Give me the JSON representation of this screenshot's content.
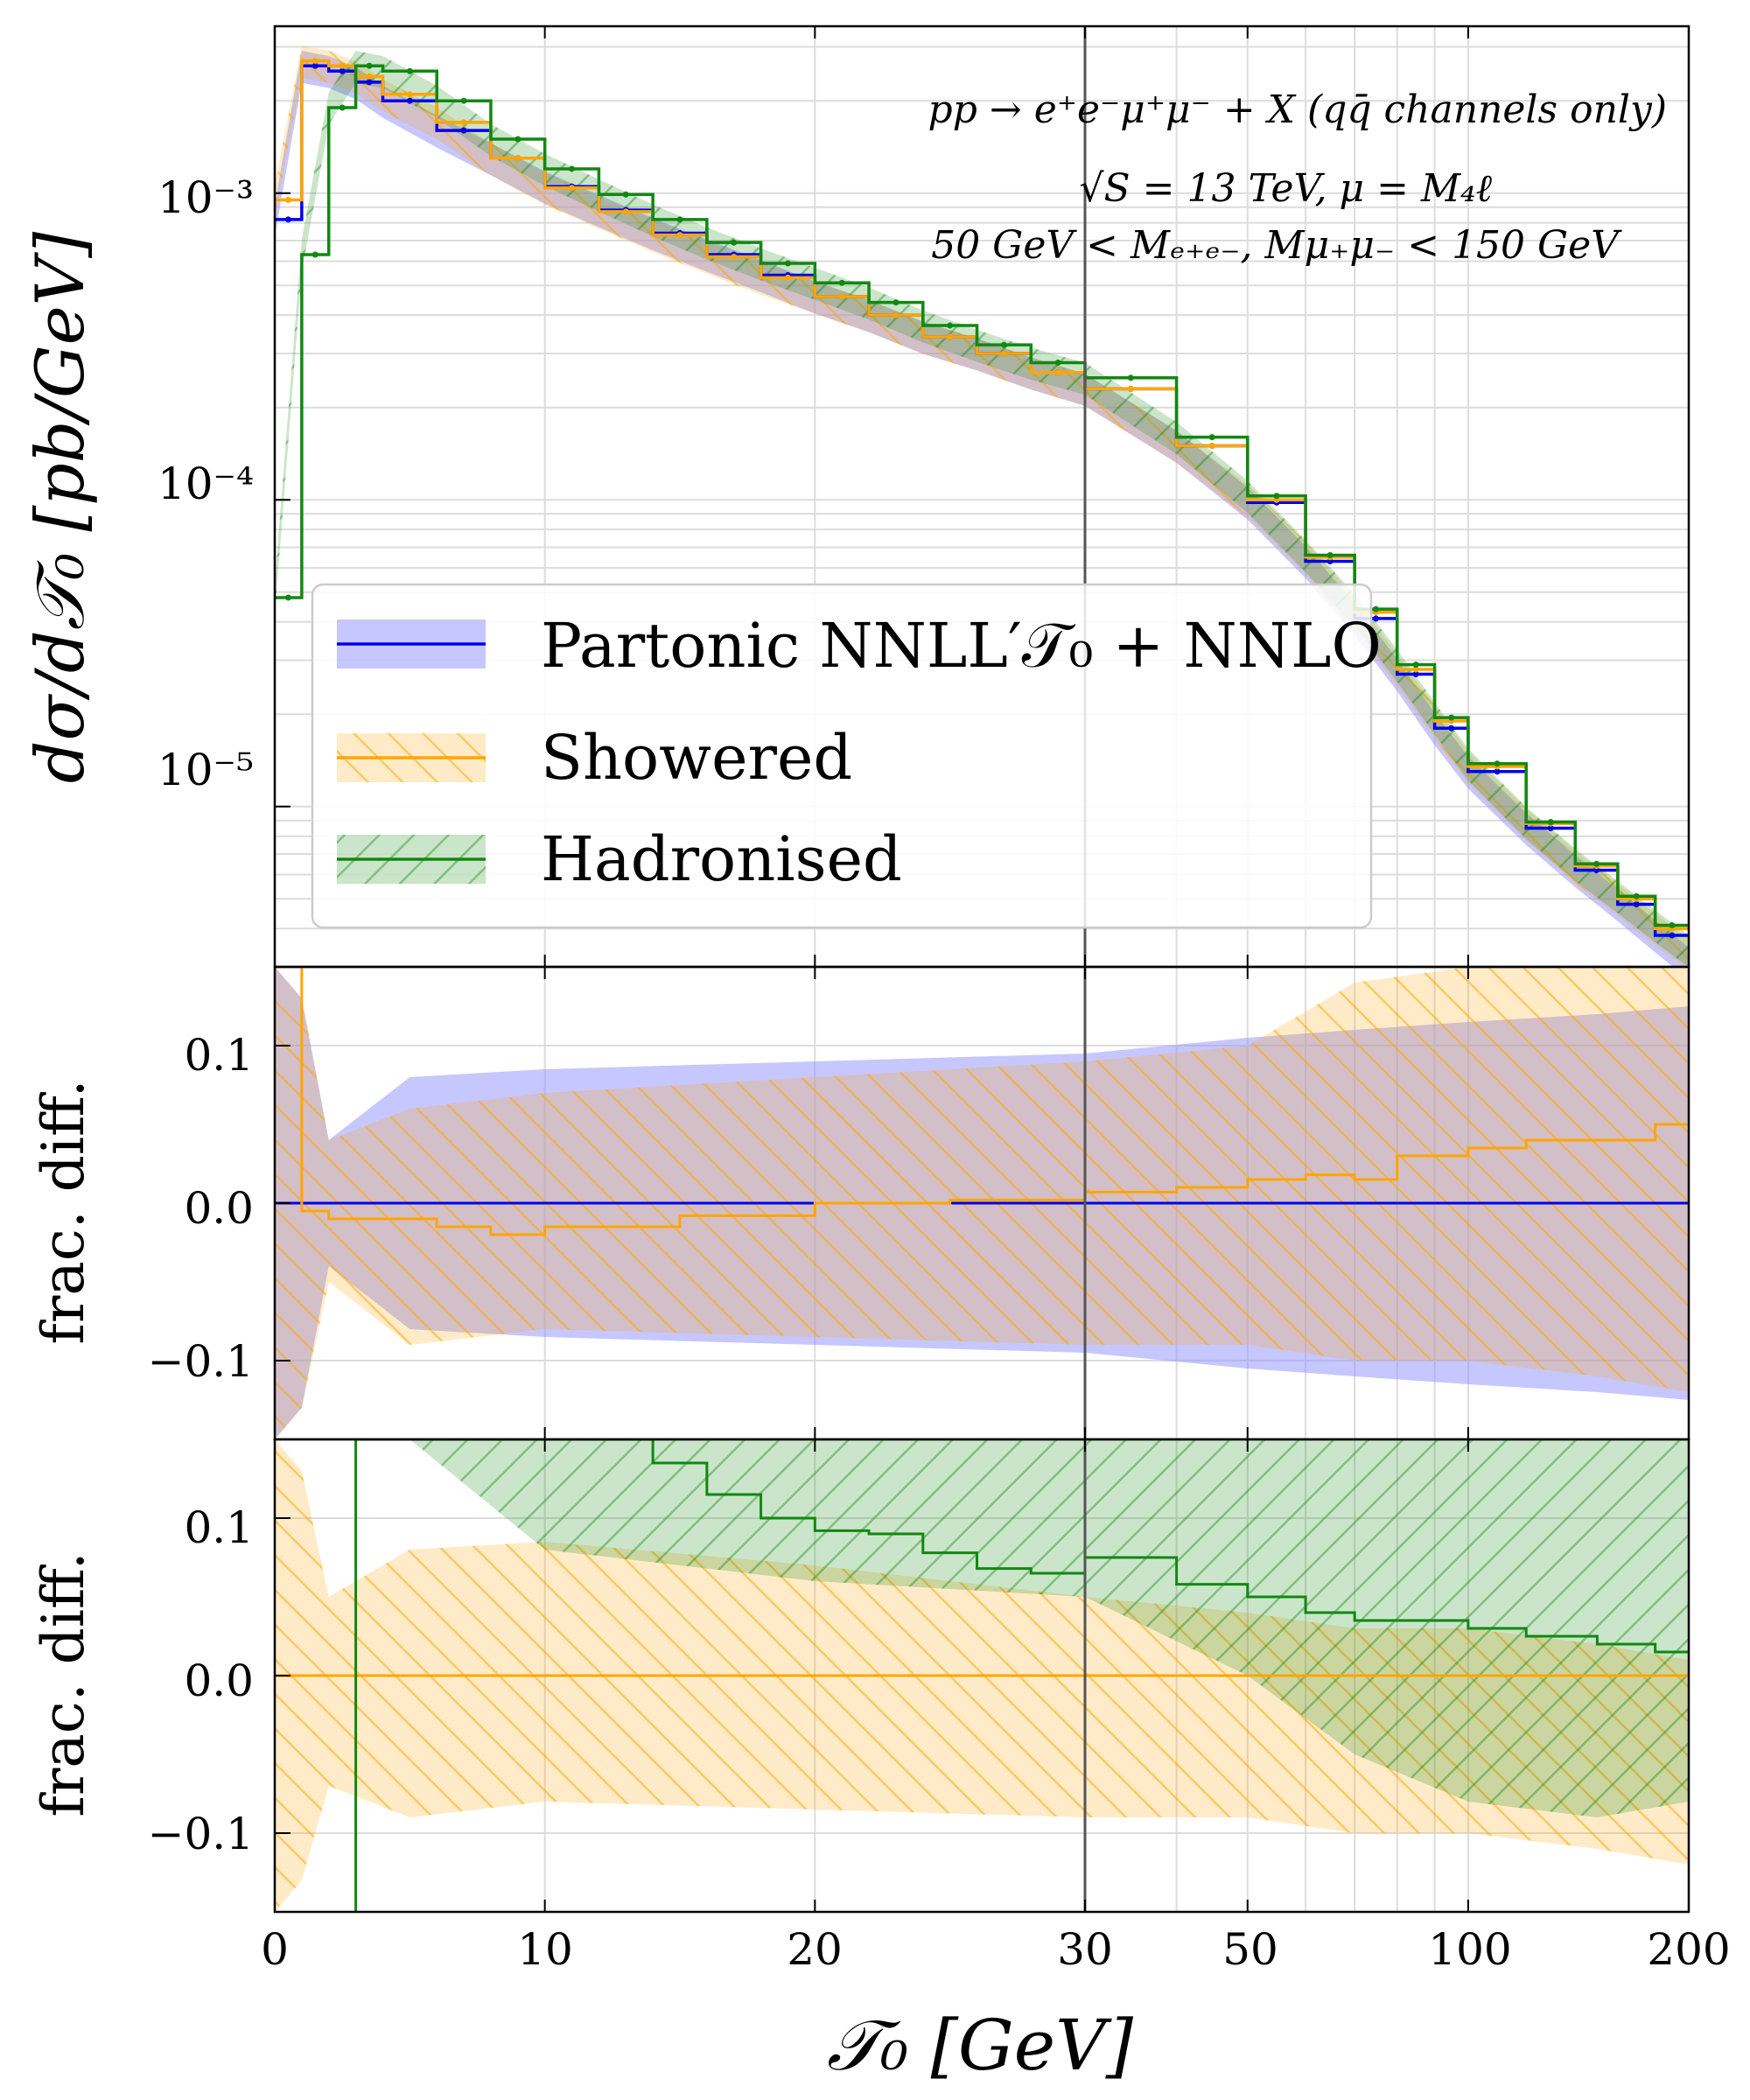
{
  "colors": {
    "partonic": "#0000ee",
    "partonic_band": "#9999ff",
    "showered": "#ffa500",
    "showered_band": "#ffd080",
    "hadronised": "#118811",
    "hadronised_band": "#88cc88",
    "grid": "#dcdcdc",
    "divider": "#555555"
  },
  "annotation": {
    "line1": "pp → e⁺e⁻μ⁺μ⁻ + X (qq̄ channels only)",
    "line2": "√S = 13 TeV, μ = M₄ℓ",
    "line3": "50 GeV < Mₑ₊ₑ₋, Mμ₊μ₋ < 150 GeV"
  },
  "legend": {
    "partonic": "Partonic NNLL′𝒯₀ + NNLO",
    "showered": "Showered",
    "hadronised": "Hadronised"
  },
  "chart_data": [
    {
      "id": "top",
      "type": "line",
      "title": "",
      "ylabel": "dσ/d𝒯₀ [pb/GeV]",
      "yscale": "log",
      "ylim": [
        3e-06,
        0.0035
      ],
      "yticks": [
        "10⁻³",
        "10⁻⁴",
        "10⁻⁵"
      ],
      "x_axis": "piecewise linear: 0–30 and 30–200 joined at the vertical line",
      "series": [
        {
          "name": "Partonic NNLL′𝒯₀ + NNLO",
          "color_key": "partonic",
          "x": [
            0,
            1,
            2,
            3,
            4,
            6,
            8,
            10,
            12,
            14,
            16,
            18,
            20,
            22,
            24,
            26,
            28,
            30,
            40,
            50,
            60,
            70,
            80,
            90,
            100,
            120,
            140,
            160,
            180,
            200
          ],
          "y": [
            0.00082,
            0.0026,
            0.0025,
            0.0023,
            0.002,
            0.0016,
            0.0013,
            0.00105,
            0.00088,
            0.00074,
            0.00063,
            0.00054,
            0.00046,
            0.0004,
            0.00034,
            0.0003,
            0.00026,
            0.00023,
            0.00015,
            9.8e-05,
            6.3e-05,
            4.1e-05,
            2.7e-05,
            1.8e-05,
            1.3e-05,
            8.5e-06,
            6.2e-06,
            4.8e-06,
            3.8e-06,
            3.1e-06
          ]
        },
        {
          "name": "Showered",
          "color_key": "showered",
          "x": [
            0,
            1,
            2,
            3,
            4,
            6,
            8,
            10,
            12,
            14,
            16,
            18,
            20,
            22,
            24,
            26,
            28,
            30,
            40,
            50,
            60,
            70,
            80,
            90,
            100,
            120,
            140,
            160,
            180,
            200
          ],
          "y": [
            0.00095,
            0.0027,
            0.0026,
            0.0024,
            0.0021,
            0.0017,
            0.0013,
            0.00104,
            0.00087,
            0.00073,
            0.00062,
            0.00053,
            0.00046,
            0.0004,
            0.00034,
            0.0003,
            0.00026,
            0.00023,
            0.00015,
            0.0001,
            6.5e-05,
            4.3e-05,
            2.8e-05,
            1.9e-05,
            1.35e-05,
            8.8e-06,
            6.4e-06,
            5e-06,
            4e-06,
            3.3e-06
          ]
        },
        {
          "name": "Hadronised",
          "color_key": "hadronised",
          "x": [
            0,
            1,
            2,
            3,
            4,
            6,
            8,
            10,
            12,
            14,
            16,
            18,
            20,
            22,
            24,
            26,
            28,
            30,
            40,
            50,
            60,
            70,
            80,
            90,
            100,
            120,
            140,
            160,
            180,
            200
          ],
          "y": [
            4.8e-05,
            0.00063,
            0.0019,
            0.0026,
            0.0025,
            0.002,
            0.0015,
            0.0012,
            0.00099,
            0.00082,
            0.00069,
            0.00059,
            0.00051,
            0.00044,
            0.00037,
            0.00032,
            0.00028,
            0.00025,
            0.00016,
            0.000103,
            6.6e-05,
            4.4e-05,
            2.9e-05,
            1.95e-05,
            1.38e-05,
            8.9e-06,
            6.5e-06,
            5.1e-06,
            4.1e-06,
            3.4e-06
          ]
        }
      ]
    },
    {
      "id": "middle",
      "type": "line",
      "ylabel": "frac. diff.",
      "ylim": [
        -0.15,
        0.15
      ],
      "yticks": [
        "0.1",
        "0.0",
        "−0.1"
      ],
      "series": [
        {
          "name": "Partonic (reference)",
          "color_key": "partonic",
          "x": [
            0,
            200
          ],
          "y": [
            0.0,
            0.0
          ],
          "band_up_x": [
            0,
            1,
            2,
            5,
            10,
            20,
            30,
            50,
            70,
            100,
            150,
            200
          ],
          "band_up": [
            0.15,
            0.13,
            0.04,
            0.08,
            0.085,
            0.09,
            0.095,
            0.105,
            0.11,
            0.115,
            0.12,
            0.125
          ],
          "band_down": [
            -0.15,
            -0.13,
            -0.04,
            -0.08,
            -0.085,
            -0.09,
            -0.095,
            -0.105,
            -0.11,
            -0.115,
            -0.12,
            -0.125
          ]
        },
        {
          "name": "Showered",
          "color_key": "showered",
          "x": [
            0,
            1,
            2,
            4,
            6,
            8,
            10,
            15,
            20,
            25,
            30,
            40,
            50,
            60,
            70,
            80,
            100,
            120,
            150,
            180,
            200
          ],
          "y": [
            0.15,
            -0.005,
            -0.01,
            -0.01,
            -0.015,
            -0.02,
            -0.015,
            -0.008,
            0.0,
            0.002,
            0.007,
            0.01,
            0.015,
            0.018,
            0.015,
            0.03,
            0.035,
            0.04,
            0.04,
            0.05,
            0.06
          ],
          "band_up_x": [
            0,
            1,
            2,
            5,
            10,
            20,
            30,
            50,
            70,
            100,
            150,
            200
          ],
          "band_up": [
            0.15,
            0.13,
            0.04,
            0.06,
            0.07,
            0.08,
            0.09,
            0.1,
            0.14,
            0.15,
            0.15,
            0.15
          ],
          "band_down": [
            -0.15,
            -0.13,
            -0.05,
            -0.09,
            -0.08,
            -0.085,
            -0.09,
            -0.09,
            -0.1,
            -0.1,
            -0.11,
            -0.12
          ]
        }
      ]
    },
    {
      "id": "bottom",
      "type": "line",
      "ylabel": "frac. diff.",
      "xlabel": "𝒯₀ [GeV]",
      "xticks": [
        "0",
        "10",
        "20",
        "30",
        "50",
        "100",
        "200"
      ],
      "ylim": [
        -0.15,
        0.15
      ],
      "yticks": [
        "0.1",
        "0.0",
        "−0.1"
      ],
      "series": [
        {
          "name": "Showered (reference)",
          "color_key": "showered",
          "x": [
            0,
            200
          ],
          "y": [
            0.0,
            0.0
          ],
          "band_up_x": [
            0,
            1,
            2,
            5,
            10,
            20,
            30,
            50,
            70,
            100,
            150,
            200
          ],
          "band_up": [
            0.15,
            0.13,
            0.05,
            0.08,
            0.085,
            0.07,
            0.05,
            0.04,
            0.03,
            0.03,
            0.02,
            0.01
          ],
          "band_down": [
            -0.15,
            -0.13,
            -0.07,
            -0.09,
            -0.08,
            -0.085,
            -0.09,
            -0.09,
            -0.1,
            -0.1,
            -0.11,
            -0.12
          ]
        },
        {
          "name": "Hadronised",
          "color_key": "hadronised",
          "x": [
            3,
            4,
            6,
            8,
            10,
            12,
            14,
            16,
            18,
            20,
            22,
            24,
            26,
            28,
            30,
            40,
            50,
            60,
            70,
            80,
            100,
            120,
            150,
            180,
            200
          ],
          "y": [
            0.15,
            0.15,
            0.15,
            0.15,
            0.15,
            0.15,
            0.135,
            0.115,
            0.1,
            0.092,
            0.09,
            0.078,
            0.068,
            0.065,
            0.075,
            0.058,
            0.05,
            0.04,
            0.035,
            0.035,
            0.03,
            0.025,
            0.02,
            0.015,
            0.01
          ],
          "band_up_x": [
            3,
            5,
            10,
            20,
            30,
            50,
            70,
            100,
            150,
            200
          ],
          "band_up": [
            0.15,
            0.15,
            0.15,
            0.15,
            0.15,
            0.15,
            0.15,
            0.15,
            0.15,
            0.15
          ],
          "band_down": [
            0.15,
            0.15,
            0.08,
            0.06,
            0.05,
            0.0,
            -0.05,
            -0.08,
            -0.09,
            -0.08
          ]
        }
      ]
    }
  ]
}
